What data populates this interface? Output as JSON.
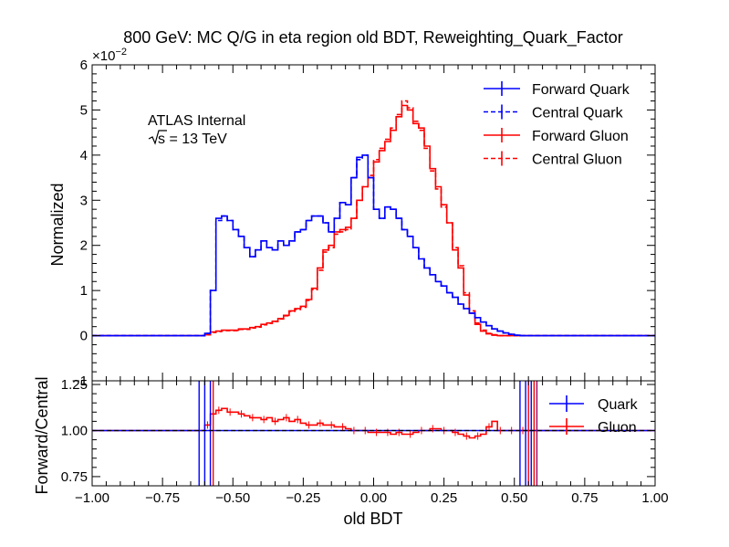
{
  "chart_data": [
    {
      "type": "line",
      "panel": "main",
      "title": "800 GeV: MC Q/G in eta region old BDT, Reweighting_Quark_Factor",
      "ylabel": "Normalized",
      "y_multiplier": "×10",
      "y_multiplier_exp": "−2",
      "ylim": [
        -1,
        6
      ],
      "xlim": [
        -1.0,
        1.0
      ],
      "yticks": [
        "−1",
        "0",
        "1",
        "2",
        "3",
        "4",
        "5",
        "6"
      ],
      "annotations": [
        "ATLAS Internal",
        "s = 13 TeV"
      ],
      "annotation_sqrt_symbol": "√",
      "legend_position": "top-right",
      "bin_edges_start": -0.6,
      "bin_width": 0.02,
      "series": [
        {
          "name": "Forward Quark",
          "color": "#0000ff",
          "style": "solid",
          "values": [
            0.05,
            1.0,
            2.6,
            2.65,
            2.55,
            2.35,
            2.2,
            1.95,
            1.75,
            1.9,
            2.1,
            1.95,
            1.9,
            2.1,
            2.0,
            2.1,
            2.3,
            2.35,
            2.55,
            2.65,
            2.65,
            2.5,
            2.3,
            2.6,
            2.95,
            2.9,
            3.5,
            3.95,
            4.0,
            3.5,
            2.8,
            2.6,
            2.85,
            2.8,
            2.6,
            2.35,
            2.2,
            1.95,
            1.7,
            1.5,
            1.35,
            1.2,
            1.1,
            0.95,
            0.85,
            0.7,
            0.6,
            0.5,
            0.4,
            0.3,
            0.22,
            0.15,
            0.1,
            0.06,
            0.03,
            0.01,
            0.0
          ]
        },
        {
          "name": "Central Quark",
          "color": "#0000ff",
          "style": "dashed",
          "values": [
            0.05,
            1.0,
            2.55,
            2.65,
            2.55,
            2.35,
            2.2,
            1.95,
            1.75,
            1.9,
            2.1,
            1.95,
            1.9,
            2.1,
            2.0,
            2.1,
            2.3,
            2.35,
            2.55,
            2.65,
            2.65,
            2.5,
            2.3,
            2.6,
            2.95,
            2.9,
            3.5,
            3.9,
            4.0,
            3.5,
            2.8,
            2.6,
            2.85,
            2.8,
            2.6,
            2.35,
            2.2,
            1.95,
            1.7,
            1.5,
            1.35,
            1.2,
            1.1,
            0.95,
            0.85,
            0.7,
            0.6,
            0.5,
            0.4,
            0.3,
            0.22,
            0.15,
            0.1,
            0.06,
            0.03,
            0.01,
            0.0
          ]
        },
        {
          "name": "Forward Gluon",
          "color": "#ff0000",
          "style": "solid",
          "values": [
            0.02,
            0.08,
            0.1,
            0.12,
            0.12,
            0.12,
            0.15,
            0.15,
            0.18,
            0.2,
            0.25,
            0.28,
            0.32,
            0.38,
            0.45,
            0.55,
            0.6,
            0.65,
            0.8,
            1.05,
            1.5,
            1.9,
            2.0,
            2.3,
            2.35,
            2.4,
            2.6,
            3.0,
            3.3,
            3.5,
            3.85,
            4.1,
            4.3,
            4.55,
            4.85,
            5.1,
            5.0,
            4.7,
            4.6,
            4.2,
            3.7,
            3.3,
            2.9,
            2.5,
            1.9,
            1.5,
            0.9,
            0.5,
            0.25,
            0.1,
            0.04,
            0.01,
            0.0,
            0.0,
            0.0,
            0.0,
            0.0
          ]
        },
        {
          "name": "Central Gluon",
          "color": "#ff0000",
          "style": "dashed",
          "values": [
            0.02,
            0.07,
            0.09,
            0.11,
            0.11,
            0.11,
            0.14,
            0.14,
            0.17,
            0.19,
            0.24,
            0.27,
            0.31,
            0.37,
            0.44,
            0.54,
            0.58,
            0.63,
            0.78,
            1.02,
            1.45,
            1.85,
            1.95,
            2.25,
            2.3,
            2.35,
            2.6,
            3.0,
            3.3,
            3.55,
            3.9,
            4.15,
            4.35,
            4.6,
            4.9,
            5.2,
            5.05,
            4.75,
            4.55,
            4.15,
            3.65,
            3.25,
            2.85,
            2.5,
            1.95,
            1.55,
            0.95,
            0.55,
            0.28,
            0.12,
            0.05,
            0.02,
            0.0,
            0.0,
            0.0,
            0.0,
            0.0
          ]
        }
      ]
    },
    {
      "type": "line",
      "panel": "ratio",
      "xlabel": "old BDT",
      "ylabel": "Forward/Central",
      "xlim": [
        -1.0,
        1.0
      ],
      "ylim": [
        0.7,
        1.27
      ],
      "xticks": [
        "−1.00",
        "−0.75",
        "−0.50",
        "−0.25",
        "0.00",
        "0.25",
        "0.50",
        "0.75",
        "1.00"
      ],
      "yticks": [
        "0.75",
        "1.00",
        "1.25"
      ],
      "reference_line": 1.0,
      "legend_position": "top-right",
      "bin_edges_start": -0.6,
      "bin_width": 0.02,
      "series": [
        {
          "name": "Quark",
          "color": "#0000ff",
          "values": [
            1.0,
            1.0,
            1.0,
            1.0,
            1.0,
            1.0,
            1.0,
            1.0,
            1.0,
            1.0,
            1.0,
            1.0,
            1.0,
            1.0,
            1.0,
            1.0,
            1.0,
            1.0,
            1.0,
            1.0,
            1.0,
            1.0,
            1.0,
            1.0,
            1.0,
            1.0,
            1.0,
            1.0,
            1.0,
            1.0,
            1.0,
            1.0,
            1.0,
            1.0,
            1.0,
            1.0,
            1.0,
            1.0,
            1.0,
            1.0,
            1.0,
            1.0,
            1.0,
            1.0,
            1.0,
            1.0,
            1.0,
            1.0,
            1.0,
            1.0,
            1.0,
            1.0,
            1.0,
            1.0,
            1.0,
            1.0,
            1.0
          ]
        },
        {
          "name": "Gluon",
          "color": "#ff0000",
          "values": [
            1.03,
            1.09,
            1.11,
            1.12,
            1.1,
            1.1,
            1.09,
            1.08,
            1.07,
            1.07,
            1.06,
            1.07,
            1.05,
            1.06,
            1.07,
            1.05,
            1.06,
            1.04,
            1.03,
            1.03,
            1.04,
            1.03,
            1.03,
            1.02,
            1.02,
            1.01,
            1.0,
            1.0,
            1.0,
            0.99,
            0.99,
            0.99,
            0.99,
            0.98,
            0.99,
            0.98,
            0.98,
            0.99,
            1.0,
            1.0,
            1.01,
            1.01,
            1.0,
            1.0,
            0.99,
            0.98,
            0.97,
            0.96,
            0.97,
            0.98,
            1.02,
            1.05,
            1.0,
            1.0,
            1.0,
            1.0,
            1.0
          ]
        }
      ]
    }
  ]
}
